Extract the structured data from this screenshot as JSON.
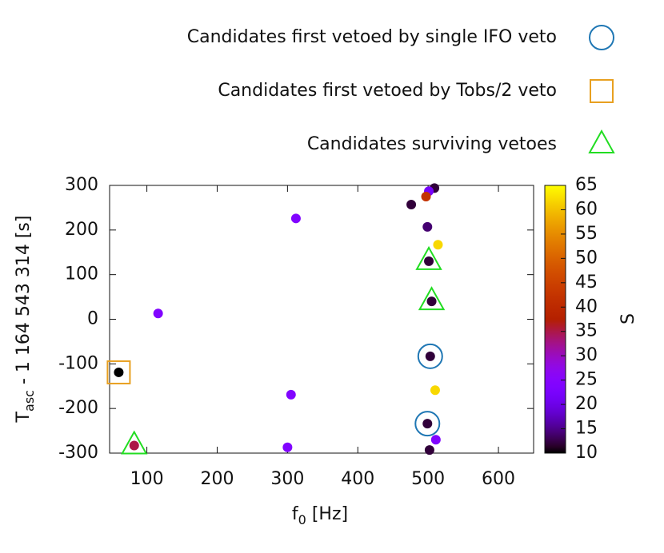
{
  "chart_data": {
    "type": "scatter",
    "x_label": {
      "main": "f",
      "sub": "0",
      "rest": " [Hz]"
    },
    "y_label": {
      "main": "T",
      "sub": "asc",
      "rest": " - 1 164 543 314 [s]"
    },
    "colorbar_label": "S",
    "palette": "gnuplot-default",
    "x": [
      509,
      501,
      497,
      476,
      312,
      499,
      514,
      501,
      505,
      116,
      503,
      60,
      510,
      305,
      499,
      511,
      82,
      300,
      502
    ],
    "y": [
      294,
      287,
      275,
      257,
      226,
      207,
      167,
      130,
      40,
      13,
      -83,
      -119,
      -159,
      -169,
      -234,
      -270,
      -283,
      -287,
      -293
    ],
    "s": [
      12,
      22,
      42,
      12,
      24,
      14,
      62,
      12,
      12,
      24,
      12,
      10,
      62,
      24,
      12,
      24,
      35,
      24,
      12
    ],
    "series": [
      {
        "name": "Candidates first vetoed by single IFO veto",
        "color": "#1f77b4",
        "marker": "circle",
        "x": [
          503,
          499
        ],
        "values": [
          -83,
          -234
        ]
      },
      {
        "name": "Candidates first vetoed by Tobs/2 veto",
        "color": "#e8a020",
        "marker": "square",
        "x": [
          60
        ],
        "values": [
          -119
        ]
      },
      {
        "name": "Candidates surviving vetoes",
        "color": "#22dd22",
        "marker": "triangle",
        "x": [
          501,
          505,
          82
        ],
        "values": [
          130,
          40,
          -283
        ]
      }
    ],
    "xlim": [
      47,
      650
    ],
    "ylim": [
      -300,
      300
    ],
    "xticks": [
      100,
      200,
      300,
      400,
      500,
      600
    ],
    "yticks": [
      -300,
      -200,
      -100,
      0,
      100,
      200,
      300
    ],
    "clim": [
      10,
      65
    ],
    "cticks": [
      10,
      15,
      20,
      25,
      30,
      35,
      40,
      45,
      50,
      55,
      60,
      65
    ]
  }
}
